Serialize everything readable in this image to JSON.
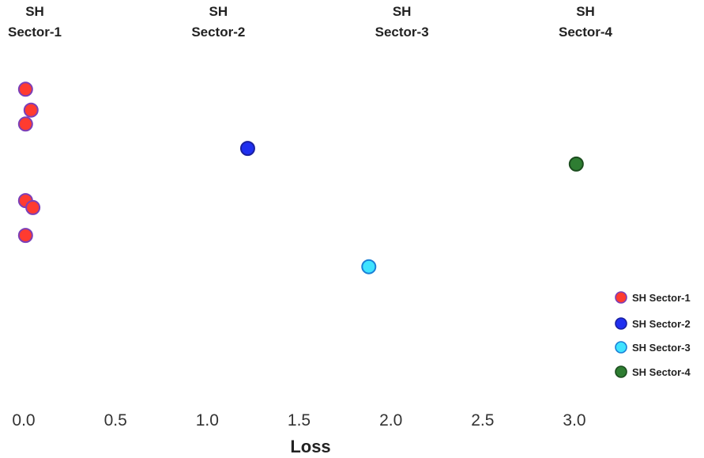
{
  "chart_data": {
    "type": "scatter",
    "xlabel": "Loss",
    "ylabel": "",
    "xlim": [
      0.0,
      3.0
    ],
    "x_ticks": [
      "0.0",
      "0.5",
      "1.0",
      "1.5",
      "2.0",
      "2.5",
      "3.0"
    ],
    "grid": false,
    "legend_position": "right",
    "column_headers": [
      {
        "line1": "SH",
        "line2": "Sector-1",
        "x": 0.0
      },
      {
        "line1": "SH",
        "line2": "Sector-2",
        "x": 1.0
      },
      {
        "line1": "SH",
        "line2": "Sector-3",
        "x": 2.0
      },
      {
        "line1": "SH",
        "line2": "Sector-4",
        "x": 3.0
      }
    ],
    "series": [
      {
        "name": "SH Sector-1",
        "color": "#ff3b30",
        "edge": "#7b3fb8",
        "points": [
          {
            "x": 0.01,
            "y": 0.88
          },
          {
            "x": 0.04,
            "y": 0.82
          },
          {
            "x": 0.01,
            "y": 0.78
          },
          {
            "x": 0.01,
            "y": 0.56
          },
          {
            "x": 0.05,
            "y": 0.54
          },
          {
            "x": 0.01,
            "y": 0.46
          }
        ]
      },
      {
        "name": "SH Sector-2",
        "color": "#1f2ff0",
        "edge": "#1a20a0",
        "points": [
          {
            "x": 1.22,
            "y": 0.71
          }
        ]
      },
      {
        "name": "SH Sector-3",
        "color": "#3fe3ff",
        "edge": "#1a7fd6",
        "points": [
          {
            "x": 1.88,
            "y": 0.37
          }
        ]
      },
      {
        "name": "SH Sector-4",
        "color": "#2e7d32",
        "edge": "#1b4d1e",
        "points": [
          {
            "x": 3.01,
            "y": 0.665
          }
        ]
      }
    ]
  }
}
